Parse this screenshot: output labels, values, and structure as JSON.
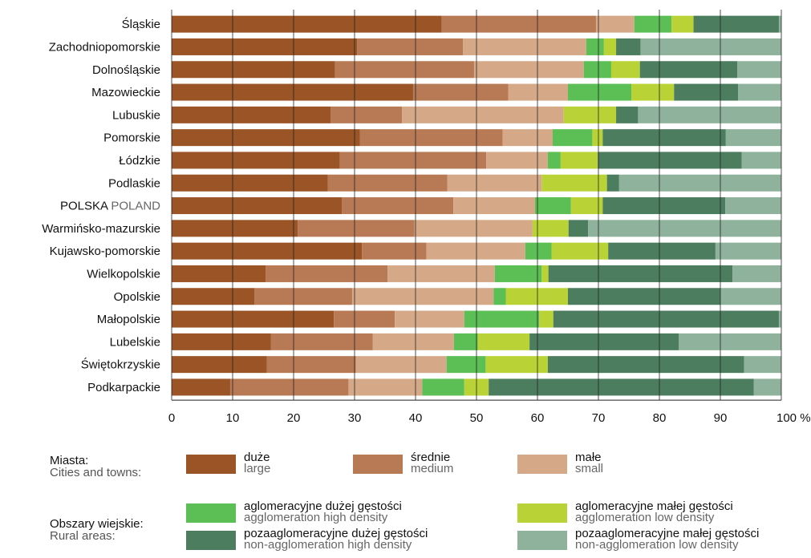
{
  "chart_data": {
    "type": "bar",
    "orientation": "horizontal",
    "stacked": true,
    "xlim": [
      0,
      100
    ],
    "x_ticks": [
      "0",
      "10",
      "20",
      "30",
      "40",
      "50",
      "60",
      "70",
      "80",
      "90",
      "100 %"
    ],
    "grid": "vertical",
    "categories": [
      "Śląskie",
      "Zachodniopomorskie",
      "Dolnośląskie",
      "Mazowieckie",
      "Lubuskie",
      "Pomorskie",
      "Łódzkie",
      "Podlaskie",
      "POLSKA POLAND",
      "Warmińsko-mazurskie",
      "Kujawsko-pomorskie",
      "Wielkopolskie",
      "Opolskie",
      "Małopolskie",
      "Lubelskie",
      "Świętokrzyskie",
      "Podkarpackie"
    ],
    "series": [
      {
        "name": "duże / large",
        "color": "#9a5426",
        "values": [
          44.3,
          30.4,
          26.8,
          39.6,
          26.1,
          30.9,
          27.6,
          25.6,
          27.9,
          20.7,
          31.2,
          15.4,
          13.6,
          26.6,
          16.3,
          15.6,
          9.6
        ]
      },
      {
        "name": "średnie / medium",
        "color": "#b87a54",
        "values": [
          25.3,
          17.4,
          22.8,
          15.6,
          11.7,
          23.4,
          24.0,
          19.6,
          18.3,
          19.1,
          10.6,
          20.0,
          16.0,
          10.0,
          16.7,
          14.6,
          19.4
        ]
      },
      {
        "name": "małe / small",
        "color": "#d5a987",
        "values": [
          6.3,
          20.2,
          18.0,
          9.8,
          26.5,
          8.2,
          10.1,
          15.5,
          13.4,
          19.4,
          16.2,
          17.6,
          23.2,
          11.4,
          13.3,
          14.9,
          12.1
        ]
      },
      {
        "name": "aglomeracyjne dużej gęstości / agglomeration high density",
        "color": "#5cbf55",
        "values": [
          6.1,
          2.9,
          4.5,
          10.4,
          0.0,
          6.5,
          2.1,
          0.0,
          5.9,
          0.0,
          4.3,
          7.7,
          2.0,
          12.3,
          3.9,
          6.4,
          6.9
        ]
      },
      {
        "name": "aglomeracyjne małej gęstości / agglomeration low density",
        "color": "#b9d337",
        "values": [
          3.6,
          2.0,
          4.7,
          7.0,
          8.6,
          1.7,
          6.1,
          10.7,
          5.2,
          5.9,
          9.3,
          1.1,
          10.2,
          2.3,
          8.5,
          10.2,
          4.0
        ]
      },
      {
        "name": "pozaaglomeracyjne dużej gęstości / non-agglomeration high density",
        "color": "#4d7d5f",
        "values": [
          14.0,
          4.0,
          16.0,
          10.5,
          3.6,
          20.2,
          23.6,
          2.0,
          20.1,
          3.2,
          17.6,
          30.2,
          25.0,
          37.0,
          24.5,
          32.2,
          43.5
        ]
      },
      {
        "name": "pozaaglomeracyjne małej gęstości / non-agglomeration low density",
        "color": "#8fb29c",
        "values": [
          0.4,
          23.1,
          7.2,
          7.1,
          23.5,
          9.1,
          6.5,
          26.6,
          9.2,
          31.7,
          10.8,
          8.0,
          10.0,
          0.4,
          16.8,
          6.1,
          4.5
        ]
      }
    ]
  },
  "legend": {
    "cities": {
      "heading": "Miasta:",
      "heading_en": "Cities and towns:",
      "items": [
        {
          "label": "duże",
          "label_en": "large",
          "color": "#9a5426"
        },
        {
          "label": "średnie",
          "label_en": "medium",
          "color": "#b87a54"
        },
        {
          "label": "małe",
          "label_en": "small",
          "color": "#d5a987"
        }
      ]
    },
    "rural": {
      "heading": "Obszary wiejskie:",
      "heading_en": "Rural areas:",
      "items": [
        {
          "label": "aglomeracyjne dużej gęstości",
          "label_en": "agglomeration high density",
          "color": "#5cbf55"
        },
        {
          "label": "aglomeracyjne małej gęstości",
          "label_en": "agglomeration low density",
          "color": "#b9d337"
        },
        {
          "label": "pozaaglomeracyjne dużej gęstości",
          "label_en": "non-agglomeration high density",
          "color": "#4d7d5f"
        },
        {
          "label": "pozaaglomeracyjne małej gęstości",
          "label_en": "non-agglomeration low density",
          "color": "#8fb29c"
        }
      ]
    }
  }
}
